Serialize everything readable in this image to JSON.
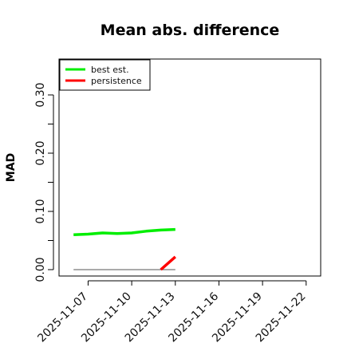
{
  "chart_data": {
    "type": "line",
    "title": "Mean abs. difference",
    "xlabel": "",
    "ylabel": "MAD",
    "ylim": [
      0,
      0.35
    ],
    "xlim": [
      "2025-11-05",
      "2025-11-23"
    ],
    "y_ticks": [
      "0.00",
      "0.10",
      "0.20",
      "0.30"
    ],
    "y_tick_values": [
      0,
      0.1,
      0.2,
      0.3
    ],
    "y_minor_ticks": [
      0.05,
      0.15,
      0.25
    ],
    "x_ticks": [
      "2025-11-07",
      "2025-11-10",
      "2025-11-13",
      "2025-11-16",
      "2025-11-19",
      "2025-11-22"
    ],
    "grid": false,
    "legend_position": "top-left",
    "series": [
      {
        "name": "best est.",
        "color": "#00ee00",
        "x": [
          "2025-11-06",
          "2025-11-07",
          "2025-11-08",
          "2025-11-09",
          "2025-11-10",
          "2025-11-11",
          "2025-11-12",
          "2025-11-13"
        ],
        "values": [
          0.06,
          0.061,
          0.063,
          0.062,
          0.063,
          0.066,
          0.068,
          0.069
        ]
      },
      {
        "name": "persistence",
        "color": "#ff0000",
        "x": [
          "2025-11-12",
          "2025-11-13"
        ],
        "values": [
          0.0,
          0.022
        ]
      }
    ],
    "reference_line": {
      "color": "#555555",
      "x": [
        "2025-11-06",
        "2025-11-13"
      ],
      "values": [
        0.0,
        0.0
      ]
    }
  }
}
